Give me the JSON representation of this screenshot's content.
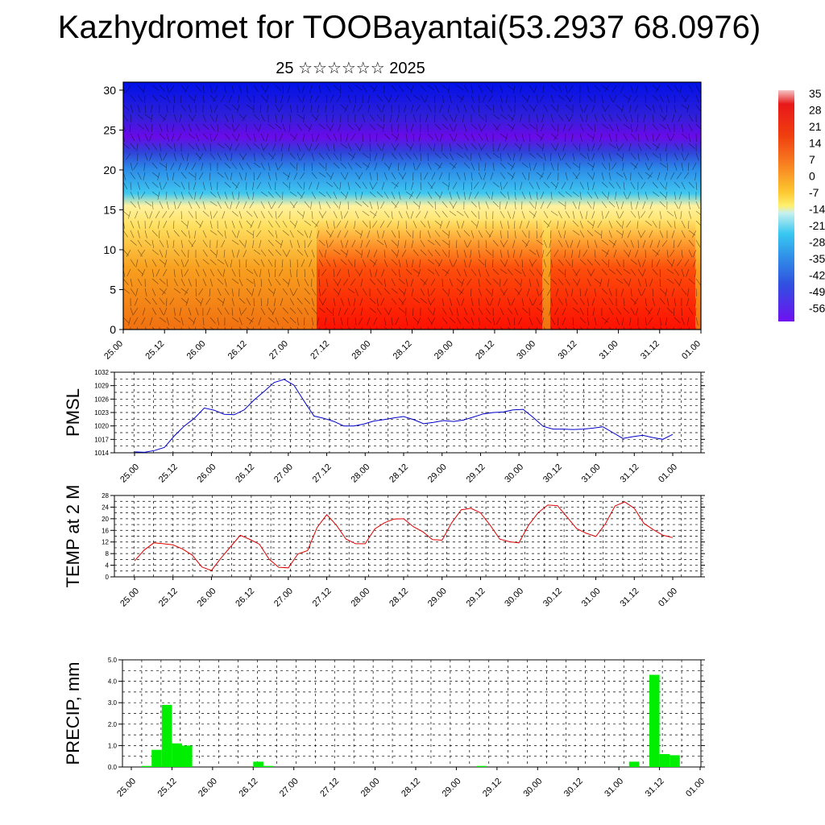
{
  "title": "Kazhydromet for TOOBayantai(53.2937 68.0976)",
  "subtitle": "25 ☆☆☆☆☆☆ 2025",
  "time_labels": [
    "25.00",
    "25.12",
    "26.00",
    "26.12",
    "27.00",
    "27.12",
    "28.00",
    "28.12",
    "29.00",
    "29.12",
    "30.00",
    "30.12",
    "31.00",
    "31.12",
    "01.00"
  ],
  "colorbar": {
    "labels": [
      "35",
      "28",
      "21",
      "14",
      "7",
      "0",
      "-7",
      "-14",
      "-21",
      "-28",
      "-35",
      "-42",
      "-49",
      "-56"
    ],
    "colors": [
      "#f4c4c4",
      "#e81818",
      "#f04010",
      "#f87010",
      "#fca018",
      "#fdc830",
      "#fff070",
      "#c8f0f0",
      "#38c8f0",
      "#3090e8",
      "#3060e0",
      "#4040e0",
      "#5020e8",
      "#7010f0"
    ]
  },
  "chart_data": [
    {
      "type": "heatmap",
      "title": "",
      "ylim": [
        0,
        31
      ],
      "yticks": [
        0,
        5,
        10,
        15,
        20,
        25,
        30
      ],
      "description_colors": {
        "high": "#ff0000",
        "low": "#6a0ae8"
      }
    },
    {
      "type": "line",
      "ylabel": "PMSL",
      "ylim": [
        1014,
        1032
      ],
      "yticks": [
        1014,
        1017,
        1020,
        1023,
        1026,
        1029,
        1032
      ],
      "color": "#0000cc",
      "values": [
        1014.2,
        1014.1,
        1014.5,
        1015.2,
        1017.8,
        1020,
        1021.7,
        1024,
        1023.5,
        1022.6,
        1022.5,
        1023.6,
        1025.8,
        1027.7,
        1029.7,
        1030.4,
        1029.1,
        1025.6,
        1022.2,
        1021.7,
        1021,
        1020,
        1020,
        1020.4,
        1021.1,
        1021.4,
        1021.8,
        1022.1,
        1021.4,
        1020.5,
        1020.8,
        1021.2,
        1021,
        1021.3,
        1022,
        1022.7,
        1023,
        1023.1,
        1023.6,
        1023.7,
        1021.9,
        1019.9,
        1019.3,
        1019.3,
        1019.2,
        1019.3,
        1019.5,
        1019.8,
        1018.5,
        1017.2,
        1017.6,
        1017.9,
        1017.4,
        1017,
        1018.1
      ]
    },
    {
      "type": "line",
      "ylabel": "TEMP at 2 M",
      "ylim": [
        0,
        28
      ],
      "yticks": [
        0,
        4,
        8,
        12,
        16,
        20,
        24,
        28
      ],
      "color": "#dd0000",
      "values": [
        5.5,
        9.2,
        11.7,
        11.4,
        11,
        9.6,
        7.5,
        3.4,
        2.2,
        6.5,
        10.4,
        14.3,
        12.9,
        11.2,
        6.1,
        3.3,
        3.1,
        7.9,
        9,
        17,
        21.4,
        17.8,
        13,
        11.4,
        11.4,
        16.5,
        18.6,
        19.9,
        20,
        17.3,
        15.5,
        12.8,
        12.6,
        18.6,
        23.1,
        23.6,
        22,
        17.8,
        13,
        12.1,
        11.7,
        17.8,
        22.1,
        24.7,
        24.5,
        20.6,
        16.6,
        15,
        13.9,
        18.3,
        24.4,
        25.8,
        23.6,
        18.4,
        16.2,
        14.3,
        13.5
      ]
    },
    {
      "type": "bar",
      "ylabel": "PRECIP, mm",
      "ylim": [
        0,
        5
      ],
      "yticks": [
        "0.0",
        "1.0",
        "2.0",
        "3.0",
        "4.0",
        "5.0"
      ],
      "color": "#00ee00",
      "bars": [
        {
          "index": 1,
          "value": 0.05
        },
        {
          "index": 2,
          "value": 0.8
        },
        {
          "index": 3,
          "value": 2.9
        },
        {
          "index": 4,
          "value": 1.1
        },
        {
          "index": 5,
          "value": 1.0
        },
        {
          "index": 12,
          "value": 0.25
        },
        {
          "index": 13,
          "value": 0.05
        },
        {
          "index": 34,
          "value": 0.05
        },
        {
          "index": 49,
          "value": 0.25
        },
        {
          "index": 51,
          "value": 4.3
        },
        {
          "index": 52,
          "value": 0.6
        },
        {
          "index": 53,
          "value": 0.55
        }
      ]
    }
  ]
}
